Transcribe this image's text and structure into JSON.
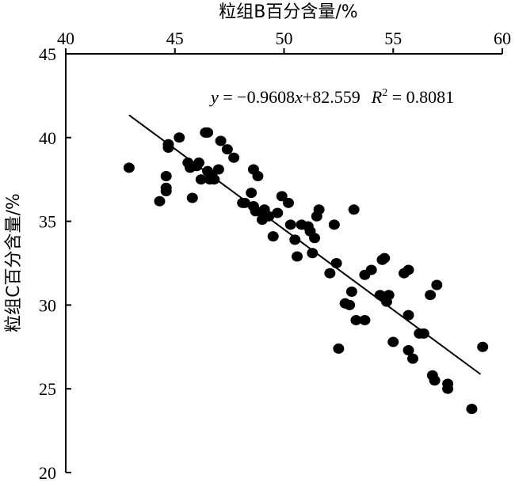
{
  "chart_data": {
    "type": "scatter",
    "xlabel": "粒组B百分含量/%",
    "ylabel": "粒组C百分含量/%",
    "xlim": [
      40,
      60
    ],
    "ylim": [
      20,
      45
    ],
    "x_axis_position": "top",
    "xticks": [
      "40",
      "45",
      "50",
      "55",
      "60"
    ],
    "yticks": [
      "20",
      "25",
      "30",
      "35",
      "40",
      "45"
    ],
    "grid": false,
    "point_color": "#000000",
    "annotation": {
      "y_var": "y",
      "eq_body": " = −0.9608",
      "x_var": "x",
      "eq_tail": "+82.559",
      "r_var": "R",
      "r_sup": "2",
      "r_value": " = 0.8081"
    },
    "trendline": {
      "slope": -0.9608,
      "intercept": 82.559,
      "x_range": [
        42.9,
        59.0
      ]
    },
    "points": [
      [
        42.9,
        38.2
      ],
      [
        44.3,
        36.2
      ],
      [
        44.6,
        36.8
      ],
      [
        44.6,
        37.0
      ],
      [
        44.6,
        37.7
      ],
      [
        44.7,
        39.4
      ],
      [
        44.7,
        39.6
      ],
      [
        45.2,
        40.0
      ],
      [
        45.6,
        38.5
      ],
      [
        45.7,
        38.2
      ],
      [
        45.8,
        36.4
      ],
      [
        46.0,
        38.3
      ],
      [
        46.1,
        38.5
      ],
      [
        46.2,
        37.5
      ],
      [
        46.4,
        40.3
      ],
      [
        46.5,
        40.3
      ],
      [
        46.5,
        38.0
      ],
      [
        46.6,
        37.5
      ],
      [
        46.7,
        37.7
      ],
      [
        46.8,
        37.5
      ],
      [
        47.0,
        38.1
      ],
      [
        47.1,
        39.8
      ],
      [
        47.4,
        39.3
      ],
      [
        47.7,
        38.8
      ],
      [
        48.1,
        36.1
      ],
      [
        48.2,
        36.1
      ],
      [
        48.5,
        36.7
      ],
      [
        48.6,
        38.1
      ],
      [
        48.6,
        35.9
      ],
      [
        48.7,
        35.6
      ],
      [
        48.8,
        37.7
      ],
      [
        49.0,
        35.1
      ],
      [
        49.0,
        35.5
      ],
      [
        49.1,
        35.7
      ],
      [
        49.3,
        35.3
      ],
      [
        49.5,
        34.1
      ],
      [
        49.7,
        35.5
      ],
      [
        49.9,
        36.5
      ],
      [
        50.2,
        36.1
      ],
      [
        50.3,
        34.8
      ],
      [
        50.5,
        33.9
      ],
      [
        50.6,
        32.9
      ],
      [
        50.8,
        34.8
      ],
      [
        51.1,
        34.7
      ],
      [
        51.2,
        34.4
      ],
      [
        51.3,
        33.1
      ],
      [
        51.4,
        34.0
      ],
      [
        51.5,
        35.3
      ],
      [
        51.6,
        35.7
      ],
      [
        52.1,
        31.9
      ],
      [
        52.3,
        34.8
      ],
      [
        52.4,
        32.5
      ],
      [
        52.5,
        27.4
      ],
      [
        52.8,
        30.1
      ],
      [
        53.0,
        30.0
      ],
      [
        53.1,
        30.8
      ],
      [
        53.2,
        35.7
      ],
      [
        53.3,
        29.1
      ],
      [
        53.7,
        29.1
      ],
      [
        53.7,
        31.8
      ],
      [
        54.0,
        32.1
      ],
      [
        54.4,
        30.6
      ],
      [
        54.5,
        32.7
      ],
      [
        54.6,
        32.8
      ],
      [
        54.7,
        30.2
      ],
      [
        54.8,
        30.6
      ],
      [
        55.0,
        27.8
      ],
      [
        55.5,
        31.9
      ],
      [
        55.7,
        32.1
      ],
      [
        55.7,
        29.4
      ],
      [
        55.7,
        27.3
      ],
      [
        55.9,
        26.8
      ],
      [
        56.2,
        28.3
      ],
      [
        56.4,
        28.3
      ],
      [
        56.7,
        30.6
      ],
      [
        56.8,
        25.8
      ],
      [
        56.9,
        25.5
      ],
      [
        57.0,
        31.2
      ],
      [
        57.5,
        25.0
      ],
      [
        57.5,
        25.3
      ],
      [
        58.6,
        23.8
      ],
      [
        59.1,
        27.5
      ]
    ]
  }
}
